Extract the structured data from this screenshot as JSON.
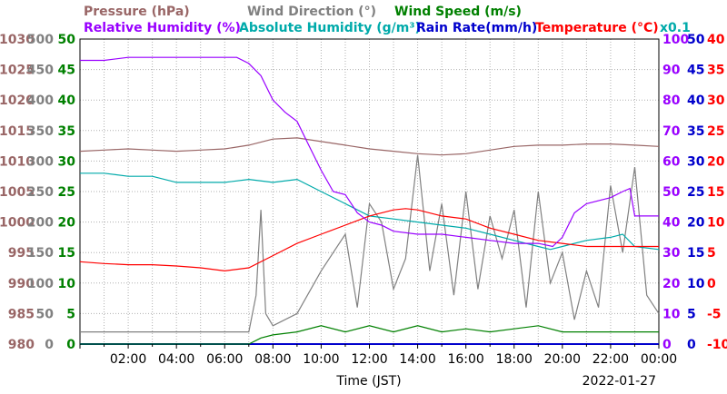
{
  "chart_data": {
    "type": "line",
    "date_label": "2022-01-27",
    "xlabel": "Time (JST)",
    "x_ticks": [
      "02:00",
      "04:00",
      "06:00",
      "08:00",
      "10:00",
      "12:00",
      "14:00",
      "16:00",
      "18:00",
      "20:00",
      "22:00",
      "00:00"
    ],
    "x_range_hours": [
      0,
      24
    ],
    "grid": true,
    "legend_row1": [
      {
        "text": "Pressure (hPa)",
        "color": "#996666"
      },
      {
        "text": "Wind Direction (°)",
        "color": "#808080"
      },
      {
        "text": "Wind Speed (m/s)",
        "color": "#008000"
      }
    ],
    "legend_row2": [
      {
        "text": "Relative Humidity (%)",
        "color": "#9900ff"
      },
      {
        "text": "Absolute Humidity (g/m³)",
        "color": "#00aaaa"
      },
      {
        "text": "Rain Rate(mm/h)",
        "color": "#0000cc"
      },
      {
        "text": "Temperature (°C)",
        "color": "#ff0000"
      }
    ],
    "abs_humidity_scale_note": "x0.1",
    "axes": {
      "pressure": {
        "color": "#996666",
        "ticks": [
          "1030",
          "1025",
          "1020",
          "1015",
          "1010",
          "1005",
          "1000",
          "995",
          "990",
          "985",
          "980"
        ],
        "range": [
          980,
          1030
        ]
      },
      "wind_direction": {
        "color": "#808080",
        "ticks": [
          "500",
          "450",
          "400",
          "350",
          "300",
          "250",
          "200",
          "150",
          "100",
          "50",
          "0"
        ],
        "range": [
          0,
          500
        ]
      },
      "wind_speed": {
        "color": "#008000",
        "ticks": [
          "50",
          "45",
          "40",
          "35",
          "30",
          "25",
          "20",
          "15",
          "10",
          "5",
          "0"
        ],
        "range": [
          0,
          50
        ]
      },
      "relative_humidity": {
        "color": "#9900ff",
        "ticks": [
          "100",
          "90",
          "80",
          "70",
          "60",
          "50",
          "40",
          "30",
          "20",
          "10",
          "0"
        ],
        "range": [
          0,
          100
        ]
      },
      "rain_rate": {
        "color": "#0000cc",
        "ticks": [
          "50",
          "45",
          "40",
          "35",
          "30",
          "25",
          "20",
          "15",
          "10",
          "5",
          "0"
        ],
        "range": [
          0,
          50
        ]
      },
      "temperature": {
        "color": "#ff0000",
        "ticks": [
          "40",
          "35",
          "30",
          "25",
          "20",
          "15",
          "10",
          "5",
          "0",
          "-5",
          "-10"
        ],
        "range": [
          -10,
          40
        ]
      }
    },
    "series": [
      {
        "name": "Pressure (hPa)",
        "axis": "pressure",
        "color": "#996666",
        "x": [
          0,
          1,
          2,
          3,
          4,
          5,
          6,
          7,
          8,
          9,
          10,
          11,
          12,
          13,
          14,
          15,
          16,
          17,
          18,
          19,
          20,
          21,
          22,
          23,
          24
        ],
        "y": [
          1011.6,
          1011.8,
          1012.0,
          1011.8,
          1011.6,
          1011.8,
          1012.0,
          1012.6,
          1013.6,
          1013.8,
          1013.2,
          1012.6,
          1012.0,
          1011.6,
          1011.2,
          1011.0,
          1011.2,
          1011.8,
          1012.4,
          1012.6,
          1012.6,
          1012.8,
          1012.8,
          1012.6,
          1012.4
        ]
      },
      {
        "name": "Relative Humidity (%)",
        "axis": "relative_humidity",
        "color": "#9900ff",
        "x": [
          0,
          1,
          2,
          3,
          4,
          5,
          6,
          6.5,
          7,
          7.5,
          8,
          8.5,
          9,
          9.5,
          10,
          10.5,
          11,
          11.5,
          12,
          12.5,
          13,
          14,
          15,
          16,
          17,
          18,
          19,
          19.6,
          20,
          20.5,
          21,
          21.5,
          22,
          22.5,
          22.8,
          23,
          24
        ],
        "y": [
          93,
          93,
          94,
          94,
          94,
          94,
          94,
          94,
          92,
          88,
          80,
          76,
          73,
          65,
          57,
          50,
          49,
          43,
          40,
          39,
          37,
          36,
          36,
          35,
          34,
          33,
          33,
          32,
          35,
          43,
          46,
          47,
          48,
          50,
          51,
          42,
          42
        ]
      },
      {
        "name": "Absolute Humidity (g/m³)",
        "axis": "wind_speed",
        "color": "#00aaaa",
        "x": [
          0,
          1,
          2,
          3,
          4,
          5,
          6,
          7,
          8,
          9,
          10,
          11,
          12,
          13,
          14,
          15,
          16,
          17,
          18,
          19,
          19.5,
          20,
          21,
          22,
          22.5,
          23,
          24
        ],
        "y": [
          28,
          28,
          27.5,
          27.5,
          26.5,
          26.5,
          26.5,
          27,
          26.5,
          27,
          25,
          23,
          21,
          20.5,
          20,
          19.5,
          19,
          18,
          17,
          16,
          15.5,
          16,
          17,
          17.5,
          18,
          16,
          15.5
        ]
      },
      {
        "name": "Temperature (°C)",
        "axis": "temperature",
        "color": "#ff0000",
        "x": [
          0,
          1,
          2,
          3,
          4,
          5,
          6,
          7,
          8,
          9,
          10,
          11,
          12,
          13,
          13.5,
          14,
          15,
          16,
          17,
          18,
          19,
          20,
          21,
          22,
          23,
          24
        ],
        "y": [
          3.5,
          3.2,
          3.0,
          3.0,
          2.8,
          2.5,
          2.0,
          2.5,
          4.5,
          6.5,
          8.0,
          9.5,
          11.0,
          12,
          12.2,
          12,
          11,
          10.5,
          9,
          8,
          7,
          6.5,
          6,
          6,
          6,
          6
        ]
      },
      {
        "name": "Wind Speed (m/s)",
        "axis": "wind_speed",
        "color": "#008000",
        "x": [
          0,
          1,
          2,
          3,
          4,
          5,
          6,
          7,
          7.5,
          8,
          9,
          10,
          11,
          12,
          13,
          14,
          15,
          16,
          17,
          18,
          19,
          20,
          21,
          22,
          23,
          24
        ],
        "y": [
          0,
          0,
          0,
          0,
          0,
          0,
          0,
          0,
          1,
          1.5,
          2,
          3,
          2,
          3,
          2,
          3,
          2,
          2.5,
          2,
          2.5,
          3,
          2,
          2,
          2,
          2,
          2
        ]
      },
      {
        "name": "Wind Direction (°)",
        "axis": "wind_direction",
        "color": "#808080",
        "x": [
          0,
          1,
          2,
          3,
          4,
          5,
          6,
          7,
          7.3,
          7.5,
          7.7,
          8,
          9,
          10,
          10.5,
          11,
          11.5,
          12,
          12.5,
          13,
          13.5,
          14,
          14.5,
          15,
          15.5,
          16,
          16.5,
          17,
          17.5,
          18,
          18.5,
          19,
          19.5,
          20,
          20.5,
          21,
          21.5,
          22,
          22.5,
          23,
          23.5,
          24
        ],
        "y": [
          20,
          20,
          20,
          20,
          20,
          20,
          20,
          20,
          80,
          220,
          50,
          30,
          50,
          120,
          150,
          180,
          60,
          230,
          200,
          90,
          140,
          310,
          120,
          230,
          80,
          250,
          90,
          210,
          140,
          220,
          60,
          250,
          100,
          150,
          40,
          120,
          60,
          260,
          150,
          290,
          80,
          50
        ]
      },
      {
        "name": "Rain Rate(mm/h)",
        "axis": "rain_rate",
        "color": "#0000cc",
        "x": [
          0,
          24
        ],
        "y": [
          0,
          0
        ]
      }
    ]
  }
}
